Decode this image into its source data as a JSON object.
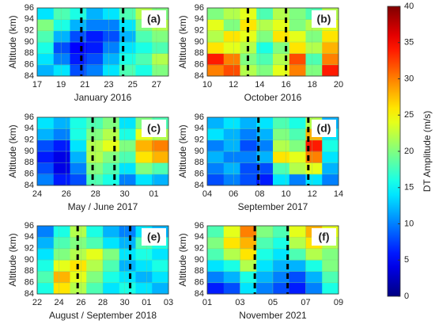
{
  "chart_data": [
    {
      "type": "heatmap",
      "panel_label": "(a)",
      "xlabel": "January 2016",
      "ylabel": "Altitude (km)",
      "xlim": [
        17,
        28
      ],
      "xticks": [
        17,
        19,
        21,
        23,
        25,
        27
      ],
      "ylim": [
        84,
        96
      ],
      "yticks": [
        84,
        86,
        88,
        90,
        92,
        94,
        96
      ],
      "grid": true,
      "dashes": [
        20.7,
        24.2
      ],
      "z": [
        [
          12,
          14,
          8,
          10,
          14,
          18,
          16,
          20
        ],
        [
          14,
          10,
          6,
          8,
          12,
          16,
          18,
          22
        ],
        [
          16,
          8,
          5,
          6,
          10,
          14,
          16,
          18
        ],
        [
          18,
          12,
          8,
          6,
          8,
          12,
          18,
          20
        ],
        [
          20,
          16,
          12,
          10,
          10,
          14,
          20,
          22
        ],
        [
          14,
          18,
          16,
          12,
          14,
          18,
          22,
          20
        ]
      ]
    },
    {
      "type": "heatmap",
      "panel_label": "(b)",
      "xlabel": "October 2016",
      "ylabel": "Altitude (km)",
      "xlim": [
        10,
        20
      ],
      "xticks": [
        10,
        12,
        14,
        16,
        18,
        20
      ],
      "ylim": [
        84,
        96
      ],
      "yticks": [
        84,
        86,
        88,
        90,
        92,
        94,
        96
      ],
      "grid": true,
      "dashes": [
        13.1,
        16
      ],
      "z": [
        [
          30,
          32,
          22,
          20,
          24,
          30,
          20,
          34
        ],
        [
          34,
          30,
          20,
          18,
          22,
          32,
          18,
          30
        ],
        [
          26,
          24,
          22,
          16,
          20,
          26,
          22,
          28
        ],
        [
          22,
          26,
          24,
          20,
          26,
          24,
          20,
          26
        ],
        [
          24,
          20,
          26,
          22,
          24,
          20,
          22,
          24
        ],
        [
          20,
          22,
          24,
          18,
          22,
          20,
          18,
          22
        ]
      ]
    },
    {
      "type": "heatmap",
      "panel_label": "(c)",
      "xlabel": "May / June 2017",
      "ylabel": "Altitude (km)",
      "xlim": [
        24,
        33
      ],
      "xticks": [
        24,
        26,
        28,
        30,
        {
          "value": 32,
          "label": "01"
        }
      ],
      "ylim": [
        84,
        96
      ],
      "yticks": [
        84,
        86,
        88,
        90,
        92,
        94,
        96
      ],
      "grid": true,
      "dashes": [
        27.8,
        29.3
      ],
      "z": [
        [
          10,
          6,
          8,
          18,
          16,
          10,
          14,
          12
        ],
        [
          8,
          4,
          10,
          20,
          18,
          14,
          20,
          18
        ],
        [
          6,
          4,
          12,
          22,
          20,
          18,
          26,
          28
        ],
        [
          8,
          6,
          14,
          22,
          24,
          20,
          28,
          30
        ],
        [
          12,
          10,
          16,
          20,
          22,
          16,
          24,
          22
        ],
        [
          14,
          12,
          16,
          18,
          20,
          14,
          20,
          18
        ]
      ]
    },
    {
      "type": "heatmap",
      "panel_label": "(d)",
      "xlabel": "September 2017",
      "ylabel": "Altitude (km)",
      "xlim": [
        4,
        14
      ],
      "xticks": [
        {
          "value": 4,
          "label": "04"
        },
        {
          "value": 6,
          "label": "06"
        },
        {
          "value": 8,
          "label": "08"
        },
        10,
        12,
        14
      ],
      "ylim": [
        84,
        96
      ],
      "yticks": [
        84,
        86,
        88,
        90,
        92,
        94,
        96
      ],
      "grid": true,
      "dashes": [
        7.9,
        11.7
      ],
      "z": [
        [
          8,
          10,
          8,
          6,
          14,
          10,
          14,
          10
        ],
        [
          10,
          12,
          8,
          8,
          18,
          22,
          24,
          12
        ],
        [
          12,
          10,
          10,
          12,
          26,
          24,
          30,
          14
        ],
        [
          10,
          12,
          8,
          10,
          22,
          20,
          34,
          16
        ],
        [
          14,
          12,
          10,
          12,
          20,
          18,
          28,
          14
        ],
        [
          12,
          14,
          12,
          14,
          18,
          16,
          22,
          12
        ]
      ]
    },
    {
      "type": "heatmap",
      "panel_label": "(e)",
      "xlabel": "August / September 2018",
      "ylabel": "Altitude (km)",
      "xlim": [
        22,
        34
      ],
      "xticks": [
        22,
        24,
        26,
        28,
        30,
        {
          "value": 32,
          "label": "01"
        },
        {
          "value": 34,
          "label": "03"
        }
      ],
      "ylim": [
        84,
        96
      ],
      "yticks": [
        84,
        86,
        88,
        90,
        92,
        94,
        96
      ],
      "grid": true,
      "dashes": [
        25.7,
        30.5
      ],
      "z": [
        [
          16,
          26,
          22,
          18,
          14,
          16,
          14,
          12
        ],
        [
          18,
          28,
          24,
          20,
          16,
          14,
          12,
          14
        ],
        [
          16,
          24,
          26,
          22,
          18,
          12,
          14,
          16
        ],
        [
          14,
          20,
          22,
          24,
          20,
          14,
          16,
          14
        ],
        [
          12,
          18,
          20,
          18,
          14,
          12,
          18,
          16
        ],
        [
          10,
          16,
          22,
          16,
          12,
          10,
          14,
          12
        ]
      ]
    },
    {
      "type": "heatmap",
      "panel_label": "(f)",
      "xlabel": "November 2021",
      "ylabel": "Altitude (km)",
      "xlim": [
        1,
        9
      ],
      "xticks": [
        {
          "value": 1,
          "label": "01"
        },
        {
          "value": 3,
          "label": "03"
        },
        {
          "value": 5,
          "label": "05"
        },
        {
          "value": 7,
          "label": "07"
        },
        {
          "value": 9,
          "label": "09"
        }
      ],
      "ylim": [
        84,
        96
      ],
      "yticks": [
        84,
        86,
        88,
        90,
        92,
        94,
        96
      ],
      "grid": true,
      "dashes": [
        3.9,
        5.9
      ],
      "z": [
        [
          6,
          8,
          14,
          10,
          8,
          6,
          10,
          16
        ],
        [
          10,
          12,
          16,
          12,
          10,
          8,
          12,
          18
        ],
        [
          14,
          16,
          22,
          14,
          12,
          12,
          16,
          20
        ],
        [
          18,
          22,
          26,
          16,
          14,
          18,
          22,
          20
        ],
        [
          20,
          26,
          28,
          18,
          16,
          22,
          26,
          22
        ],
        [
          18,
          24,
          30,
          20,
          18,
          24,
          28,
          24
        ]
      ]
    }
  ],
  "colorbar": {
    "label": "DT Amplitude (m/s)",
    "colormap": "jet",
    "zlim": [
      0,
      40
    ],
    "zticks": [
      0,
      5,
      10,
      15,
      20,
      25,
      30,
      35,
      40
    ]
  }
}
